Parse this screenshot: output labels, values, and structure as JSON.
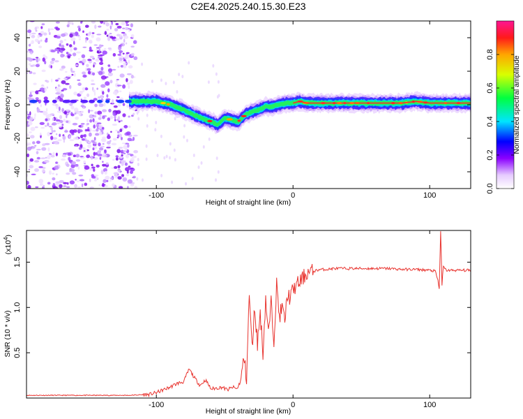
{
  "figure": {
    "title": "C2E4.2025.240.15.30.E23"
  },
  "chart_data": [
    {
      "type": "heatmap",
      "xlabel": "Height of straight line (km)",
      "ylabel": "Frequency (Hz)",
      "xlim": [
        -195,
        130
      ],
      "ylim": [
        -50,
        50
      ],
      "xticks": [
        -100,
        0,
        100
      ],
      "yticks": [
        -40,
        -20,
        0,
        20,
        40
      ],
      "colorbar": {
        "label": "Normalized spectral amplitude",
        "range": [
          0,
          1
        ],
        "ticks": [
          0.0,
          0.2,
          0.4,
          0.6,
          0.8
        ]
      },
      "noise_region_x": [
        -195,
        -115
      ],
      "ridge": {
        "x": [
          -195,
          -175,
          -150,
          -125,
          -115,
          -100,
          -90,
          -80,
          -70,
          -60,
          -55,
          -50,
          -45,
          -40,
          -35,
          -30,
          -25,
          -20,
          -15,
          -10,
          -5,
          0,
          5,
          10,
          20,
          40,
          60,
          80,
          90,
          100,
          110,
          120,
          130
        ],
        "freq": [
          2,
          2,
          2,
          2,
          2,
          2,
          0,
          -3,
          -7,
          -10,
          -12,
          -8,
          -9,
          -10,
          -6,
          -4,
          -3,
          -1,
          -1,
          0,
          1,
          1,
          2,
          1,
          1,
          1,
          1,
          1,
          2,
          1,
          1,
          1,
          1
        ]
      }
    },
    {
      "type": "line",
      "xlabel": "Height of straight line (km)",
      "ylabel": "SNR (10 * v/v)",
      "yscale_label": "(x10",
      "yscale_exp": "4",
      "xlim": [
        -195,
        130
      ],
      "ylim": [
        0,
        1.85
      ],
      "xticks": [
        -100,
        0,
        100
      ],
      "yticks": [
        0.5,
        1.0,
        1.5
      ],
      "series": [
        {
          "color": "#e8332e",
          "x": [
            -195,
            -150,
            -120,
            -105,
            -100,
            -95,
            -90,
            -85,
            -80,
            -76,
            -72,
            -68,
            -64,
            -60,
            -56,
            -52,
            -48,
            -44,
            -41,
            -38,
            -36,
            -34,
            -32,
            -30,
            -28,
            -26,
            -24,
            -22,
            -20,
            -18,
            -16,
            -14,
            -12,
            -10,
            -8,
            -6,
            -4,
            -2,
            0,
            3,
            6,
            10,
            15,
            20,
            25,
            30,
            40,
            50,
            60,
            70,
            80,
            90,
            100,
            104,
            106,
            107,
            108,
            109,
            110,
            112,
            115,
            120,
            125,
            130
          ],
          "values": [
            0.03,
            0.03,
            0.03,
            0.04,
            0.06,
            0.09,
            0.12,
            0.16,
            0.18,
            0.32,
            0.22,
            0.14,
            0.2,
            0.1,
            0.11,
            0.12,
            0.09,
            0.12,
            0.1,
            0.2,
            0.45,
            0.22,
            1.15,
            0.55,
            1.0,
            0.6,
            0.95,
            0.5,
            1.1,
            0.7,
            1.05,
            0.65,
            1.25,
            0.9,
            1.0,
            0.85,
            1.15,
            1.1,
            1.2,
            1.25,
            1.3,
            1.38,
            1.4,
            1.42,
            1.42,
            1.43,
            1.43,
            1.43,
            1.43,
            1.43,
            1.42,
            1.42,
            1.41,
            1.4,
            1.3,
            1.2,
            1.85,
            1.25,
            1.45,
            1.41,
            1.41,
            1.41,
            1.41,
            1.41
          ]
        }
      ]
    }
  ]
}
